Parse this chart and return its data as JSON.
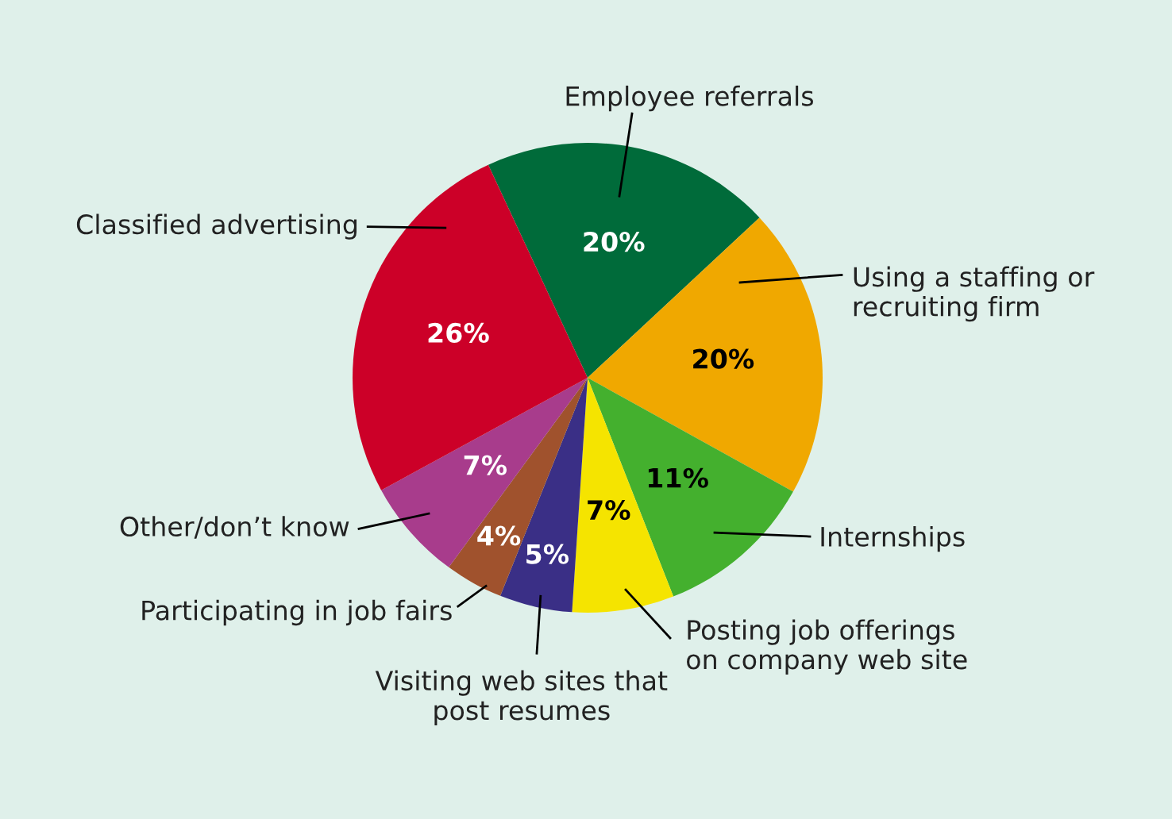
{
  "chart_data": {
    "type": "pie",
    "categories": [
      "Employee referrals",
      "Using a staffing or\nrecruiting firm",
      "Internships",
      "Posting job offerings\non company web site",
      "Visiting web sites that\npost resumes",
      "Participating in job fairs",
      "Other/don’t know",
      "Classified advertising"
    ],
    "values": [
      20,
      20,
      11,
      7,
      5,
      4,
      7,
      26
    ],
    "value_labels": [
      "20%",
      "20%",
      "11%",
      "7%",
      "5%",
      "4%",
      "7%",
      "26%"
    ],
    "colors": [
      "#006b3a",
      "#f0a800",
      "#44b02e",
      "#f5e400",
      "#3a2f86",
      "#a0522d",
      "#a83c8c",
      "#cc0028"
    ],
    "legend": false
  }
}
